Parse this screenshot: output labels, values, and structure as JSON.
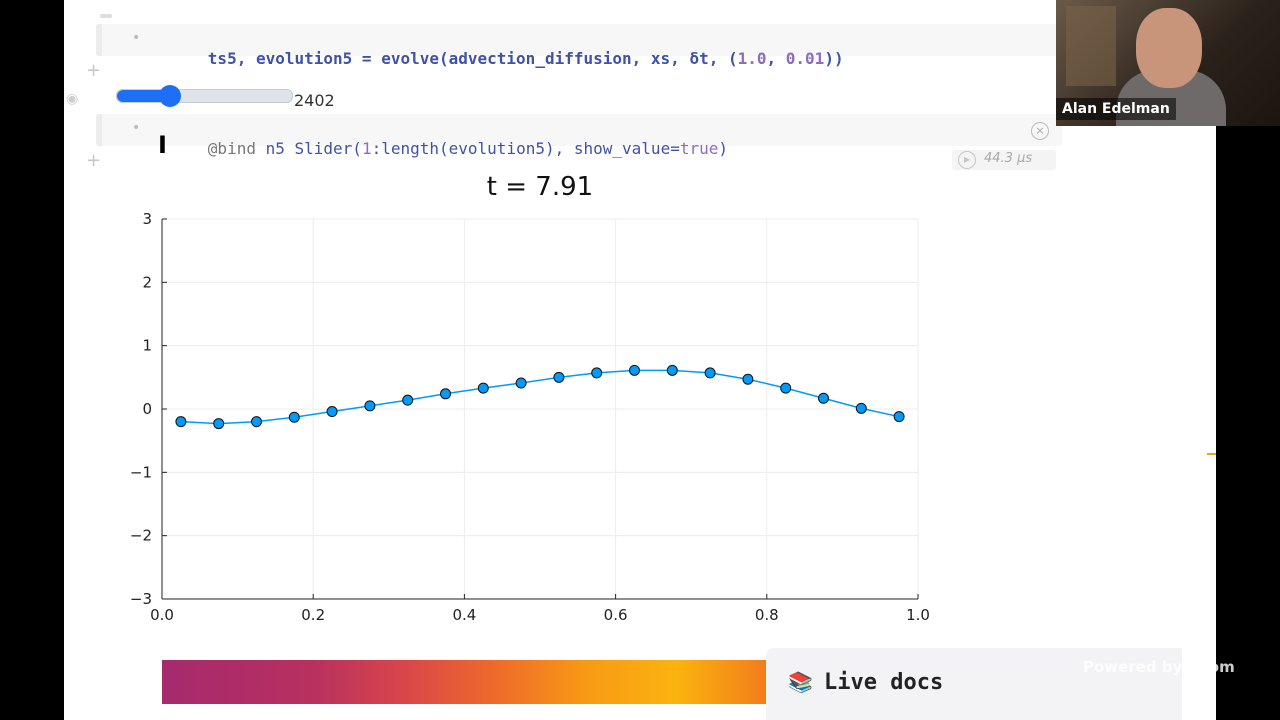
{
  "cells": {
    "cell1": {
      "code_parts": [
        "ts5, evolution5 = evolve(advection_diffusion, xs, δt, (",
        "1.0",
        ", ",
        "0.01",
        "))"
      ]
    },
    "slider": {
      "value_label": "2402",
      "fraction": 0.25
    },
    "cell2": {
      "macro": "@bind",
      "code_rest": " n5 Slider(",
      "num1": "1",
      "code_rest2": ":length(evolution5), show_value=",
      "bool": "true",
      "close": ")"
    },
    "runtime": "44.3 μs"
  },
  "chart_data": {
    "type": "line",
    "title": "t = 7.91",
    "xlabel": "",
    "ylabel": "",
    "xlim": [
      0.0,
      1.0
    ],
    "ylim": [
      -3,
      3
    ],
    "xticks": [
      "0.0",
      "0.2",
      "0.4",
      "0.6",
      "0.8",
      "1.0"
    ],
    "yticks": [
      "3",
      "2",
      "1",
      "0",
      "−1",
      "−2",
      "−3"
    ],
    "grid": true,
    "series": [
      {
        "color": "#009af9",
        "x": [
          0.025,
          0.075,
          0.125,
          0.175,
          0.225,
          0.275,
          0.325,
          0.375,
          0.425,
          0.475,
          0.525,
          0.575,
          0.625,
          0.675,
          0.725,
          0.775,
          0.825,
          0.875,
          0.925,
          0.975
        ],
        "y": [
          -0.2,
          -0.23,
          -0.2,
          -0.13,
          -0.04,
          0.05,
          0.14,
          0.24,
          0.33,
          0.41,
          0.5,
          0.57,
          0.61,
          0.61,
          0.57,
          0.47,
          0.33,
          0.17,
          0.01,
          -0.12
        ]
      }
    ]
  },
  "live_docs": {
    "label": "Live docs",
    "icon": "books-icon"
  },
  "webcam": {
    "name": "Alan Edelman"
  },
  "overlay": {
    "zoom_text": "Powered by Zoom"
  }
}
